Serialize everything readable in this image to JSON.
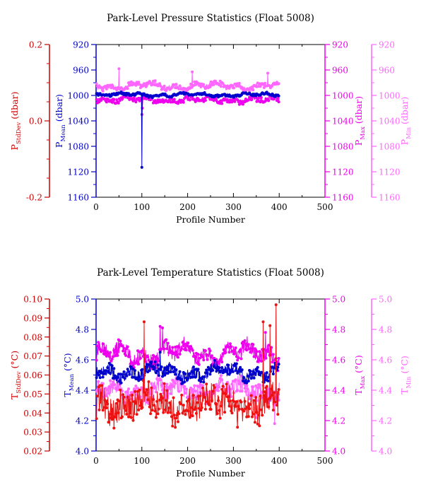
{
  "chart_data": [
    {
      "type": "scatter",
      "title": "Park-Level Pressure Statistics (Float 5008)",
      "xlabel": "Profile Number",
      "xlim": [
        0,
        500
      ],
      "xticks": [
        "0",
        "100",
        "200",
        "300",
        "400",
        "500"
      ],
      "grid": false,
      "y_axes": [
        {
          "id": "std",
          "label": "P",
          "sub": "StdDev",
          "unit": " (dbar)",
          "color": "#cc0000",
          "lim": [
            -0.2,
            0.2
          ],
          "inverted": false,
          "ticks": [
            "0.2",
            "0.0",
            "-0.2"
          ]
        },
        {
          "id": "mean",
          "label": "P",
          "sub": "Mean",
          "unit": " (dbar)",
          "color": "#0000cc",
          "lim": [
            920,
            1160
          ],
          "inverted": true,
          "ticks": [
            "920",
            "960",
            "1000",
            "1040",
            "1080",
            "1120",
            "1160"
          ]
        },
        {
          "id": "max",
          "label": "P",
          "sub": "Max",
          "unit": " (dbar)",
          "color": "#ee00ee",
          "lim": [
            920,
            1160
          ],
          "inverted": true,
          "ticks": [
            "920",
            "960",
            "1000",
            "1040",
            "1080",
            "1120",
            "1160"
          ]
        },
        {
          "id": "min",
          "label": "P",
          "sub": "Min",
          "unit": " (dbar)",
          "color": "#ff66ff",
          "lim": [
            920,
            1160
          ],
          "inverted": true,
          "ticks": [
            "920",
            "960",
            "1000",
            "1040",
            "1080",
            "1120",
            "1160"
          ]
        }
      ],
      "series": [
        {
          "axis": "min",
          "color": "#ff66ff",
          "n": 400,
          "base": 985,
          "amp": 6,
          "noise": 4,
          "spikes": [
            [
              50,
              958
            ],
            [
              210,
              963
            ],
            [
              375,
              965
            ]
          ]
        },
        {
          "axis": "max",
          "color": "#ee00ee",
          "n": 400,
          "base": 1007,
          "amp": 4,
          "noise": 4,
          "spikes": [
            [
              100,
              1030
            ],
            [
              101,
              1020
            ]
          ]
        },
        {
          "axis": "mean",
          "color": "#0000cc",
          "n": 400,
          "base": 999,
          "amp": 3,
          "noise": 2,
          "spikes": [
            [
              100,
              1113
            ],
            [
              101,
              1000
            ]
          ]
        }
      ]
    },
    {
      "type": "scatter",
      "title": "Park-Level Temperature Statistics (Float 5008)",
      "xlabel": "Profile Number",
      "xlim": [
        0,
        500
      ],
      "xticks": [
        "0",
        "100",
        "200",
        "300",
        "400",
        "500"
      ],
      "grid": false,
      "y_axes": [
        {
          "id": "std",
          "label": "T",
          "sub": "StdDev",
          "unit": " (°C)",
          "color": "#cc0000",
          "lim": [
            0.02,
            0.1
          ],
          "inverted": false,
          "ticks": [
            "0.02",
            "0.03",
            "0.04",
            "0.05",
            "0.06",
            "0.07",
            "0.08",
            "0.09",
            "0.10"
          ]
        },
        {
          "id": "mean",
          "label": "T",
          "sub": "Mean",
          "unit": " (°C)",
          "color": "#0000cc",
          "lim": [
            4.0,
            5.0
          ],
          "inverted": false,
          "ticks": [
            "4.0",
            "4.2",
            "4.4",
            "4.6",
            "4.8",
            "5.0"
          ]
        },
        {
          "id": "max",
          "label": "T",
          "sub": "Max",
          "unit": " (°C)",
          "color": "#ee00ee",
          "lim": [
            4.0,
            5.0
          ],
          "inverted": false,
          "ticks": [
            "4.0",
            "4.2",
            "4.4",
            "4.6",
            "4.8",
            "5.0"
          ]
        },
        {
          "id": "min",
          "label": "T",
          "sub": "Min",
          "unit": " (°C)",
          "color": "#ff66ff",
          "lim": [
            4.0,
            5.0
          ],
          "inverted": false,
          "ticks": [
            "4.0",
            "4.2",
            "4.4",
            "4.6",
            "4.8",
            "5.0"
          ]
        }
      ],
      "series": [
        {
          "axis": "max",
          "color": "#ee00ee",
          "n": 400,
          "base": 4.64,
          "amp": 0.07,
          "noise": 0.05,
          "spikes": [
            [
              140,
              4.82
            ],
            [
              145,
              4.81
            ],
            [
              370,
              4.78
            ]
          ]
        },
        {
          "axis": "min",
          "color": "#ff66ff",
          "n": 400,
          "base": 4.4,
          "amp": 0.06,
          "noise": 0.06,
          "spikes": [
            [
              350,
              4.22
            ],
            [
              390,
              4.18
            ]
          ]
        },
        {
          "axis": "mean",
          "color": "#0000cc",
          "n": 400,
          "base": 4.52,
          "amp": 0.05,
          "noise": 0.04,
          "spikes": [
            [
              140,
              4.65
            ]
          ]
        },
        {
          "axis": "std",
          "color": "#ee1111",
          "n": 400,
          "base": 0.045,
          "amp": 0.006,
          "noise": 0.008,
          "spikes": [
            [
              105,
              0.088
            ],
            [
              365,
              0.088
            ],
            [
              380,
              0.086
            ],
            [
              393,
              0.097
            ]
          ]
        }
      ]
    }
  ]
}
